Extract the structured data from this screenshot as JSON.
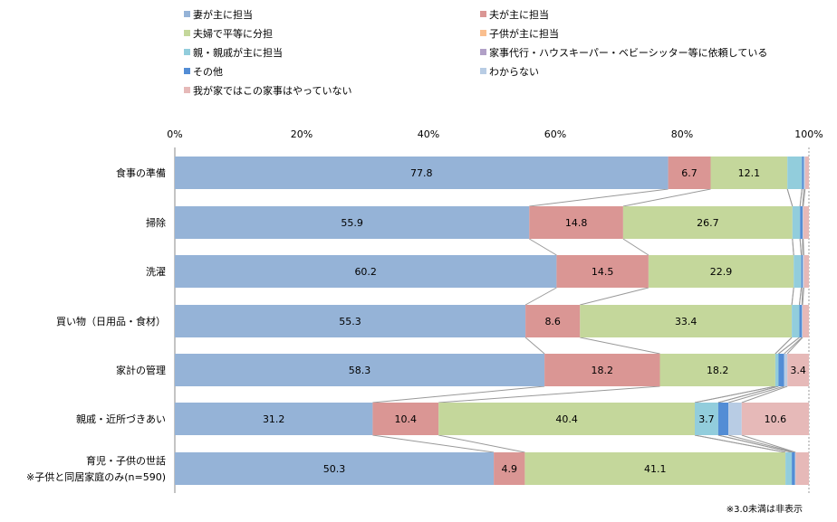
{
  "chart_data": {
    "type": "bar",
    "orientation": "horizontal-stacked-100",
    "categories": [
      "食事の準備",
      "掃除",
      "洗濯",
      "買い物（日用品・食材）",
      "家計の管理",
      "親戚・近所づきあい",
      "育児・子供の世話\n※子供と同居家庭のみ(n=590)"
    ],
    "series": [
      {
        "name": "妻が主に担当",
        "color": "#95b3d7",
        "values": [
          77.8,
          55.9,
          60.2,
          55.3,
          58.3,
          31.2,
          50.3
        ]
      },
      {
        "name": "夫が主に担当",
        "color": "#da9694",
        "values": [
          6.7,
          14.8,
          14.5,
          8.6,
          18.2,
          10.4,
          4.9
        ]
      },
      {
        "name": "夫婦で平等に分担",
        "color": "#c4d79b",
        "values": [
          12.1,
          26.7,
          22.9,
          33.4,
          18.2,
          40.4,
          41.1
        ]
      },
      {
        "name": "子供が主に担当",
        "color": "#fabf8f",
        "values": [
          0,
          0,
          0,
          0,
          0,
          0,
          0
        ]
      },
      {
        "name": "親・親戚が主に担当",
        "color": "#92cddc",
        "values": [
          2.3,
          1.2,
          1.2,
          1.2,
          0.5,
          3.7,
          1.0
        ]
      },
      {
        "name": "家事代行・ハウスキーパー・ベビーシッター等に依頼している",
        "color": "#b1a0c7",
        "values": [
          0,
          0,
          0,
          0,
          0,
          0,
          0
        ]
      },
      {
        "name": "その他",
        "color": "#538dd5",
        "values": [
          0.3,
          0.4,
          0.2,
          0.4,
          0.9,
          1.6,
          0.5
        ]
      },
      {
        "name": "わからない",
        "color": "#b8cce4",
        "values": [
          0.2,
          0.1,
          0.2,
          0.1,
          0.5,
          2.1,
          0.1
        ]
      },
      {
        "name": "我が家ではこの家事はやっていない",
        "color": "#e6b9b8",
        "values": [
          0.6,
          0.9,
          0.8,
          1.0,
          3.4,
          10.6,
          2.1
        ]
      }
    ],
    "xlim": [
      0,
      100
    ],
    "x_ticks": [
      "0%",
      "20%",
      "40%",
      "60%",
      "80%",
      "100%"
    ],
    "label_threshold": 3.0,
    "legend_position": "top",
    "grid": false,
    "footnote": "※3.0未満は非表示"
  }
}
